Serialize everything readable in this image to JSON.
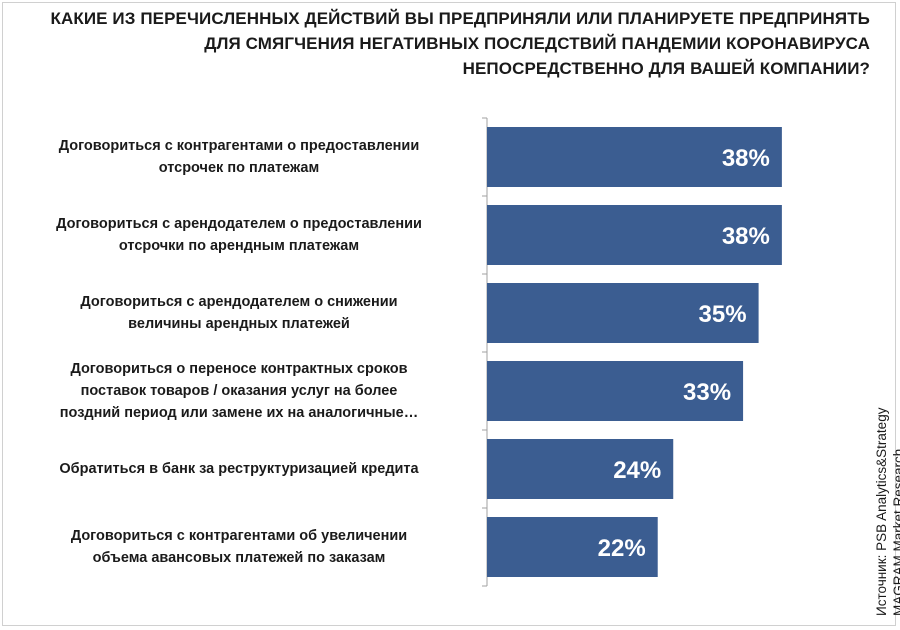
{
  "title_lines": [
    "КАКИЕ ИЗ ПЕРЕЧИСЛЕННЫХ ДЕЙСТВИЙ ВЫ ПРЕДПРИНЯЛИ ИЛИ ПЛАНИРУЕТЕ ПРЕДПРИНЯТЬ",
    "ДЛЯ СМЯГЧЕНИЯ НЕГАТИВНЫХ ПОСЛЕДСТВИЙ ПАНДЕМИИ КОРОНАВИРУСА",
    "НЕПОСРЕДСТВЕННО ДЛЯ ВАШЕЙ КОМПАНИИ?"
  ],
  "source": "Источник: PSB Analytics&Strategy\nMAGRAM Market Research",
  "colors": {
    "bar": "#3b5d91",
    "bar_text": "#ffffff",
    "axis": "#a0a0a0"
  },
  "chart_data": {
    "type": "bar",
    "orientation": "horizontal",
    "categories": [
      "Договориться с контрагентами о предоставлении\nотсрочек по платежам",
      "Договориться с арендодателем о предоставлении\nотсрочки по арендным платежам",
      "Договориться с арендодателем о снижении\nвеличины арендных платежей",
      "Договориться о переносе контрактных сроков\nпоставок товаров / оказания услуг на более\nпоздний период или замене их на аналогичные…",
      "Обратиться в банк за реструктуризацией кредита",
      "Договориться с контрагентами об увеличении\nобъема авансовых платежей по заказам"
    ],
    "values": [
      38,
      38,
      35,
      33,
      24,
      22
    ],
    "data_labels": [
      "38%",
      "38%",
      "35%",
      "33%",
      "24%",
      "22%"
    ],
    "value_unit": "%",
    "xlim": [
      0,
      50
    ],
    "grid": false,
    "legend": "none"
  }
}
